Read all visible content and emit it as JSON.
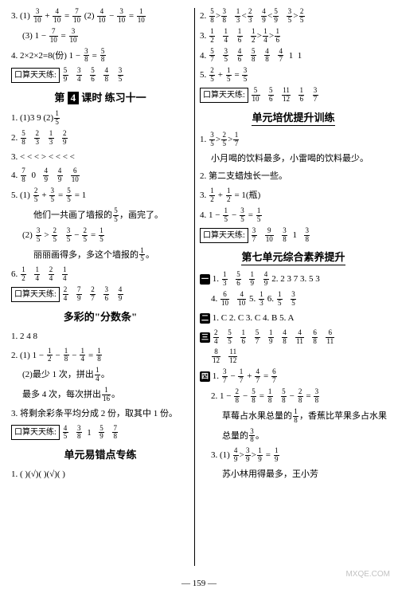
{
  "page_number": "— 159 —",
  "watermark": "MXQE.COM",
  "left": {
    "l1_a": "3. (1)",
    "l1_b": " (2)",
    "l2": "(3) 1 − ",
    "l3_a": "4. 2×2×2=8(份)  1 − ",
    "l4_label": "口算天天练:",
    "sec1_a": "第",
    "sec1_b": "4",
    "sec1_c": "课时  练习十一",
    "s1_1": "1. (1)3  9  (2)",
    "s1_2": "2. ",
    "s1_3": "3.  <  <  <  >  <  <  <  <",
    "s1_4": "4. ",
    "s1_5_1": "5. (1)",
    "s1_5_1b": "他们一共画了墙报的",
    "s1_5_1c": "，画完了。",
    "s1_5_2a": "(2)",
    "s1_5_2b": "丽丽画得多，多这个墙报的",
    "s1_5_2c": "。",
    "s1_6": "6. ",
    "l4b_label": "口算天天练:",
    "sec2": "多彩的\"分数条\"",
    "s2_1": "1. 2  4  8",
    "s2_2a": "2. (1) 1 − ",
    "s2_2b": "(2)最少 1 次，拼出",
    "s2_2c": "。",
    "s2_2d": "最多 4 次，每次拼出",
    "s2_2e": "。",
    "s2_3": "3. 将剩余彩条平均分成 2 份，取其中 1 份。",
    "l4c_label": "口算天天练:",
    "sec3": "单元易错点专练",
    "s3_1": "1. (  )(√)(  )(√)(  )"
  },
  "right": {
    "r1": "2. ",
    "r2": "3. ",
    "r3": "4. ",
    "r4": "5. ",
    "rlabel1": "口算天天练:",
    "sec4": "单元培优提升训练",
    "s4_1": "1. ",
    "s4_1b": "小月喝的饮料最多，小雷喝的饮料最少。",
    "s4_2": "2. 第二支蜡烛长一些。",
    "s4_3": "3. ",
    "s4_3b": "= 1(瓶)",
    "s4_4": "4. 1 − ",
    "rlabel2": "口算天天练:",
    "sec5": "第七单元综合素养提升",
    "box1": "一",
    "b1_1": "1. ",
    "b1_2": "  2. 2  3  7  3. 5  3",
    "b1_4": "4. ",
    "b1_56": "  5. ",
    "b1_6": "  6. ",
    "box2": "二",
    "b2": " 1. C  2. C  3. C  4. B  5. A",
    "box3": "三",
    "box4": "四",
    "b4_1": "1. ",
    "b4_2": "2. 1 − ",
    "b4_2b": "草莓占水果总量的",
    "b4_2c": "，香蕉比苹果多占水果",
    "b4_2d": "总量的",
    "b4_2e": "。",
    "b4_3": "3. (1)",
    "b4_3b": "苏小林用得最多，王小芳"
  }
}
